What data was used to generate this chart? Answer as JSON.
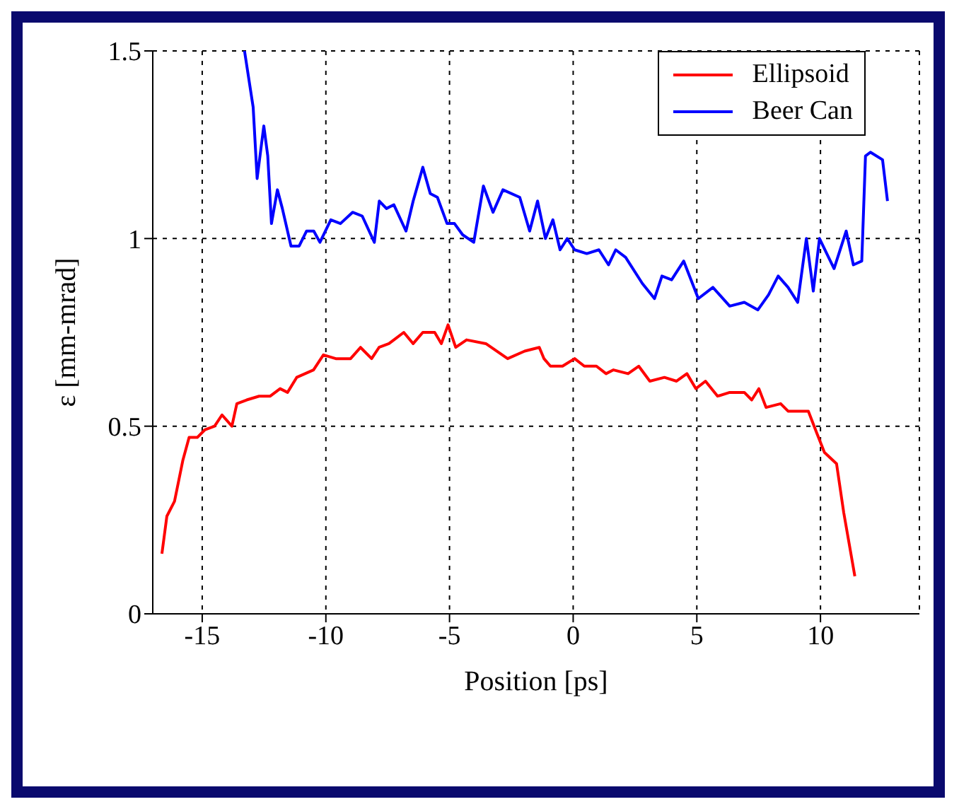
{
  "chart_data": {
    "type": "line",
    "xlabel": "Position [ps]",
    "ylabel": "ε [mm-mrad]",
    "xlim": [
      -17,
      14
    ],
    "ylim": [
      0,
      1.5
    ],
    "xticks": [
      -15,
      -10,
      -5,
      0,
      5,
      10
    ],
    "yticks": [
      0,
      0.5,
      1,
      1.5
    ],
    "grid": true,
    "legend": "top right",
    "line_style": "solid",
    "marker": "none",
    "series": [
      {
        "name": "Ellipsoid",
        "color": "#ff0000",
        "x": [
          -16.63,
          -16.43,
          -16.12,
          -15.78,
          -15.53,
          -15.2,
          -14.9,
          -14.5,
          -14.2,
          -13.8,
          -13.6,
          -13.2,
          -12.7,
          -12.25,
          -11.85,
          -11.55,
          -11.18,
          -10.5,
          -10.1,
          -9.6,
          -9.0,
          -8.6,
          -8.15,
          -7.85,
          -7.45,
          -7.25,
          -6.85,
          -6.47,
          -6.08,
          -5.6,
          -5.33,
          -5.06,
          -4.75,
          -4.31,
          -3.53,
          -2.65,
          -1.96,
          -1.37,
          -1.18,
          -0.92,
          -0.43,
          0.06,
          0.45,
          0.94,
          1.33,
          1.63,
          2.22,
          2.65,
          3.1,
          3.69,
          4.18,
          4.6,
          4.96,
          5.35,
          5.84,
          6.33,
          6.92,
          7.22,
          7.51,
          7.8,
          8.39,
          8.69,
          9.51,
          9.86,
          10.16,
          10.65,
          10.94,
          11.39
        ],
        "values": [
          0.16,
          0.26,
          0.3,
          0.41,
          0.47,
          0.47,
          0.49,
          0.5,
          0.53,
          0.5,
          0.56,
          0.57,
          0.58,
          0.58,
          0.6,
          0.59,
          0.63,
          0.65,
          0.69,
          0.68,
          0.68,
          0.71,
          0.68,
          0.71,
          0.72,
          0.73,
          0.75,
          0.72,
          0.75,
          0.75,
          0.72,
          0.77,
          0.71,
          0.73,
          0.72,
          0.68,
          0.7,
          0.71,
          0.68,
          0.66,
          0.66,
          0.68,
          0.66,
          0.66,
          0.64,
          0.65,
          0.64,
          0.66,
          0.62,
          0.63,
          0.62,
          0.64,
          0.6,
          0.62,
          0.58,
          0.59,
          0.59,
          0.57,
          0.6,
          0.55,
          0.56,
          0.54,
          0.54,
          0.48,
          0.43,
          0.4,
          0.27,
          0.1
        ]
      },
      {
        "name": "Beer Can",
        "color": "#0000ff",
        "x": [
          -13.29,
          -12.94,
          -12.78,
          -12.51,
          -12.35,
          -12.2,
          -11.96,
          -11.76,
          -11.41,
          -11.08,
          -10.78,
          -10.49,
          -10.24,
          -9.8,
          -9.41,
          -8.92,
          -8.53,
          -8.04,
          -7.84,
          -7.55,
          -7.25,
          -6.76,
          -6.47,
          -6.08,
          -5.78,
          -5.49,
          -5.1,
          -4.8,
          -4.47,
          -4.02,
          -3.63,
          -3.24,
          -2.84,
          -2.16,
          -1.76,
          -1.44,
          -1.12,
          -0.82,
          -0.53,
          -0.24,
          0.06,
          0.55,
          1.04,
          1.43,
          1.72,
          2.12,
          2.8,
          3.29,
          3.59,
          3.98,
          4.47,
          5.06,
          5.65,
          6.33,
          6.92,
          7.47,
          7.9,
          8.29,
          8.69,
          9.08,
          9.43,
          9.71,
          9.96,
          10.55,
          11.04,
          11.33,
          11.67,
          11.82,
          12.02,
          12.51,
          12.71
        ],
        "values": [
          1.5,
          1.35,
          1.16,
          1.3,
          1.22,
          1.04,
          1.13,
          1.08,
          0.98,
          0.98,
          1.02,
          1.02,
          0.99,
          1.05,
          1.04,
          1.07,
          1.06,
          0.99,
          1.1,
          1.08,
          1.09,
          1.02,
          1.1,
          1.19,
          1.12,
          1.11,
          1.04,
          1.04,
          1.01,
          0.99,
          1.14,
          1.07,
          1.13,
          1.11,
          1.02,
          1.1,
          1.0,
          1.05,
          0.97,
          1.0,
          0.97,
          0.96,
          0.97,
          0.93,
          0.97,
          0.95,
          0.88,
          0.84,
          0.9,
          0.89,
          0.94,
          0.84,
          0.87,
          0.82,
          0.83,
          0.81,
          0.85,
          0.9,
          0.87,
          0.83,
          1.0,
          0.86,
          1.0,
          0.92,
          1.02,
          0.93,
          0.94,
          1.22,
          1.23,
          1.21,
          1.1
        ]
      }
    ]
  }
}
